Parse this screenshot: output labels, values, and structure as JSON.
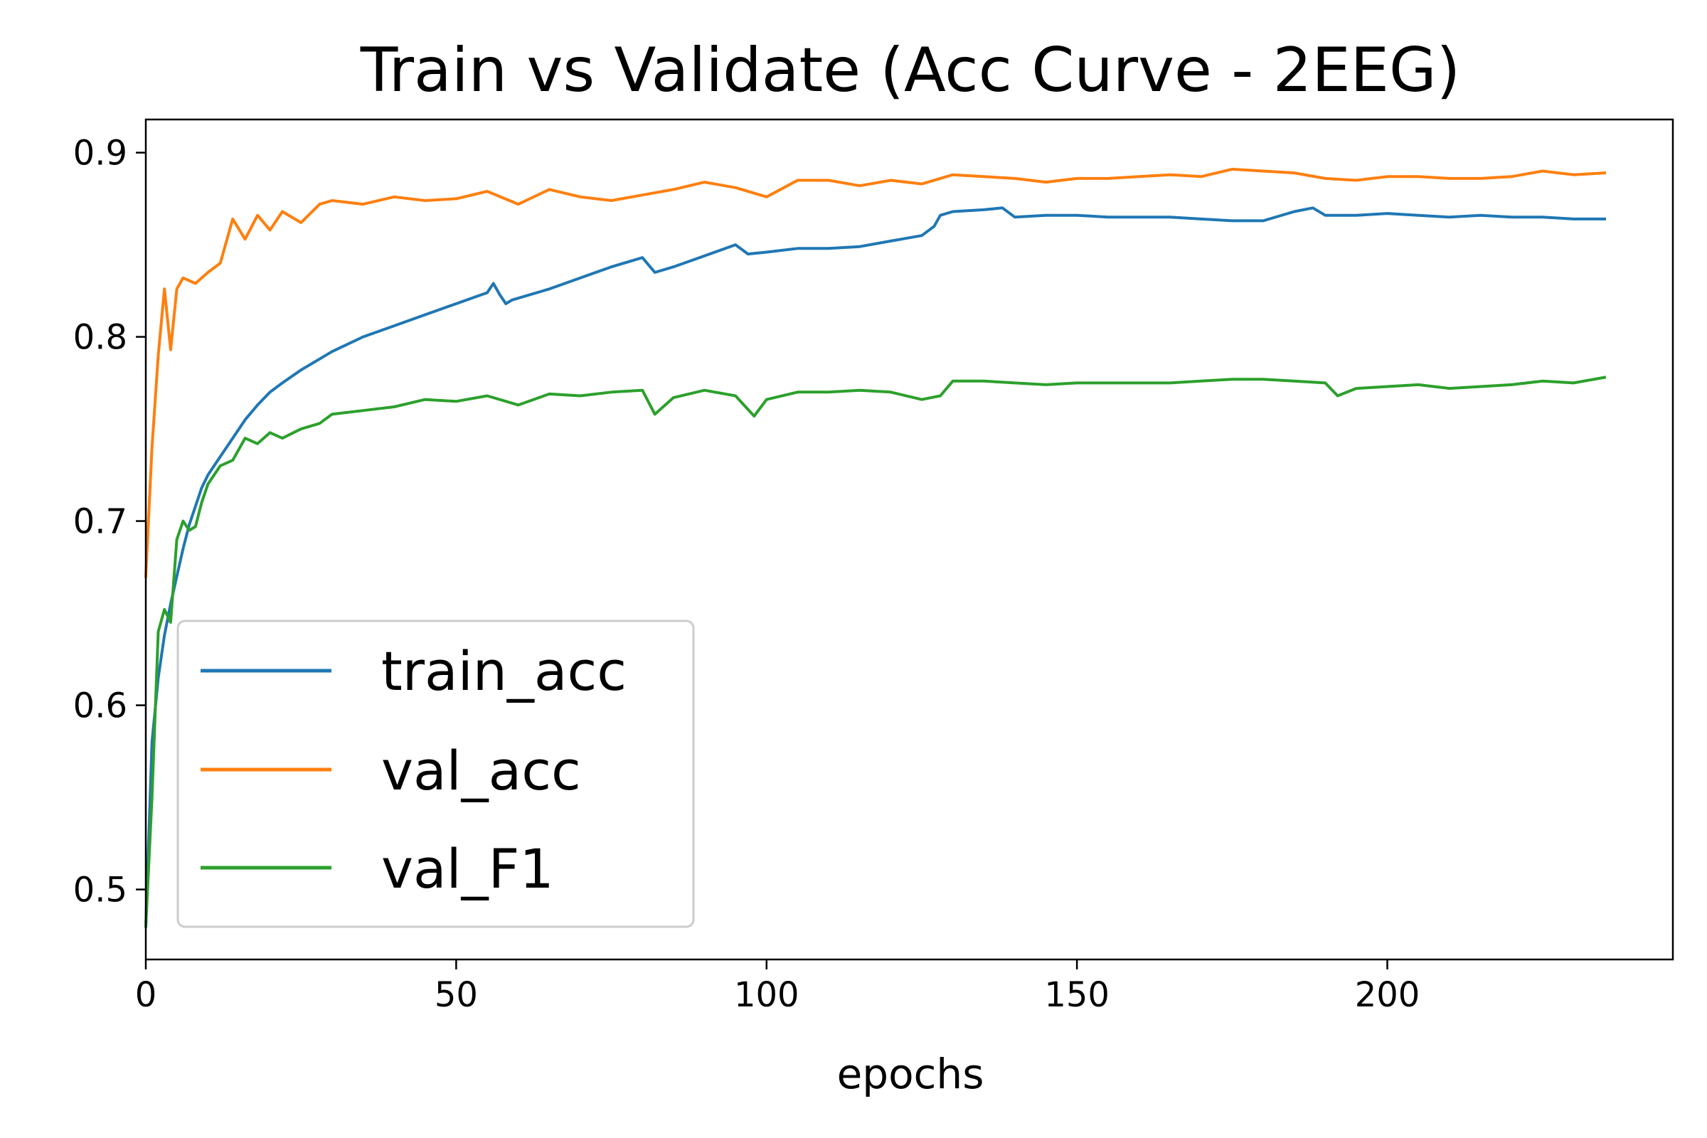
{
  "chart_data": {
    "type": "line",
    "title": "Train vs Validate (Acc Curve - 2EEG)",
    "xlabel": "epochs",
    "ylabel": "",
    "xlim": [
      0,
      246
    ],
    "ylim": [
      0.462,
      0.918
    ],
    "x_ticks": [
      "0",
      "50",
      "100",
      "150",
      "200"
    ],
    "y_ticks": [
      "0.5",
      "0.6",
      "0.7",
      "0.8",
      "0.9"
    ],
    "grid": false,
    "legend_position": "lower-left",
    "series": [
      {
        "name": "train_acc",
        "color": "#1f77b4",
        "x": [
          0,
          1,
          2,
          3,
          4,
          5,
          6,
          7,
          8,
          9,
          10,
          12,
          14,
          16,
          18,
          20,
          22,
          25,
          28,
          30,
          35,
          40,
          45,
          50,
          55,
          56,
          57,
          58,
          59,
          60,
          65,
          70,
          75,
          80,
          82,
          85,
          90,
          95,
          97,
          100,
          105,
          110,
          115,
          120,
          125,
          127,
          128,
          130,
          135,
          138,
          140,
          145,
          150,
          155,
          160,
          165,
          170,
          175,
          180,
          185,
          188,
          190,
          195,
          200,
          205,
          210,
          215,
          220,
          225,
          230,
          235
        ],
        "y": [
          0.48,
          0.58,
          0.615,
          0.638,
          0.655,
          0.67,
          0.685,
          0.698,
          0.708,
          0.718,
          0.725,
          0.735,
          0.745,
          0.755,
          0.763,
          0.77,
          0.775,
          0.782,
          0.788,
          0.792,
          0.8,
          0.806,
          0.812,
          0.818,
          0.824,
          0.829,
          0.823,
          0.818,
          0.82,
          0.821,
          0.826,
          0.832,
          0.838,
          0.843,
          0.835,
          0.838,
          0.844,
          0.85,
          0.845,
          0.846,
          0.848,
          0.848,
          0.849,
          0.852,
          0.855,
          0.86,
          0.866,
          0.868,
          0.869,
          0.87,
          0.865,
          0.866,
          0.866,
          0.865,
          0.865,
          0.865,
          0.864,
          0.863,
          0.863,
          0.868,
          0.87,
          0.866,
          0.866,
          0.867,
          0.866,
          0.865,
          0.866,
          0.865,
          0.865,
          0.864,
          0.864
        ]
      },
      {
        "name": "val_acc",
        "color": "#ff7f0e",
        "x": [
          0,
          1,
          2,
          3,
          4,
          5,
          6,
          8,
          10,
          12,
          14,
          16,
          18,
          20,
          22,
          25,
          28,
          30,
          35,
          40,
          45,
          50,
          55,
          60,
          65,
          70,
          75,
          80,
          85,
          90,
          95,
          100,
          105,
          110,
          115,
          120,
          125,
          130,
          135,
          140,
          145,
          150,
          155,
          160,
          165,
          170,
          175,
          180,
          185,
          190,
          195,
          200,
          205,
          210,
          215,
          220,
          225,
          230,
          235
        ],
        "y": [
          0.67,
          0.74,
          0.79,
          0.826,
          0.793,
          0.826,
          0.832,
          0.829,
          0.835,
          0.84,
          0.864,
          0.853,
          0.866,
          0.858,
          0.868,
          0.862,
          0.872,
          0.874,
          0.872,
          0.876,
          0.874,
          0.875,
          0.879,
          0.872,
          0.88,
          0.876,
          0.874,
          0.877,
          0.88,
          0.884,
          0.881,
          0.876,
          0.885,
          0.885,
          0.882,
          0.885,
          0.883,
          0.888,
          0.887,
          0.886,
          0.884,
          0.886,
          0.886,
          0.887,
          0.888,
          0.887,
          0.891,
          0.89,
          0.889,
          0.886,
          0.885,
          0.887,
          0.887,
          0.886,
          0.886,
          0.887,
          0.89,
          0.888,
          0.889
        ]
      },
      {
        "name": "val_F1",
        "color": "#2ca02c",
        "x": [
          0,
          1,
          2,
          3,
          4,
          5,
          6,
          7,
          8,
          9,
          10,
          12,
          14,
          16,
          18,
          20,
          22,
          25,
          28,
          30,
          35,
          40,
          45,
          50,
          55,
          60,
          65,
          70,
          75,
          80,
          82,
          85,
          90,
          95,
          98,
          100,
          105,
          110,
          115,
          120,
          125,
          128,
          130,
          135,
          140,
          145,
          150,
          155,
          160,
          165,
          170,
          175,
          180,
          185,
          190,
          192,
          195,
          200,
          205,
          210,
          215,
          220,
          225,
          230,
          235
        ],
        "y": [
          0.48,
          0.55,
          0.64,
          0.652,
          0.645,
          0.69,
          0.7,
          0.695,
          0.697,
          0.71,
          0.72,
          0.73,
          0.733,
          0.745,
          0.742,
          0.748,
          0.745,
          0.75,
          0.753,
          0.758,
          0.76,
          0.762,
          0.766,
          0.765,
          0.768,
          0.763,
          0.769,
          0.768,
          0.77,
          0.771,
          0.758,
          0.767,
          0.771,
          0.768,
          0.757,
          0.766,
          0.77,
          0.77,
          0.771,
          0.77,
          0.766,
          0.768,
          0.776,
          0.776,
          0.775,
          0.774,
          0.775,
          0.775,
          0.775,
          0.775,
          0.776,
          0.777,
          0.777,
          0.776,
          0.775,
          0.768,
          0.772,
          0.773,
          0.774,
          0.772,
          0.773,
          0.774,
          0.776,
          0.775,
          0.778
        ]
      }
    ]
  }
}
